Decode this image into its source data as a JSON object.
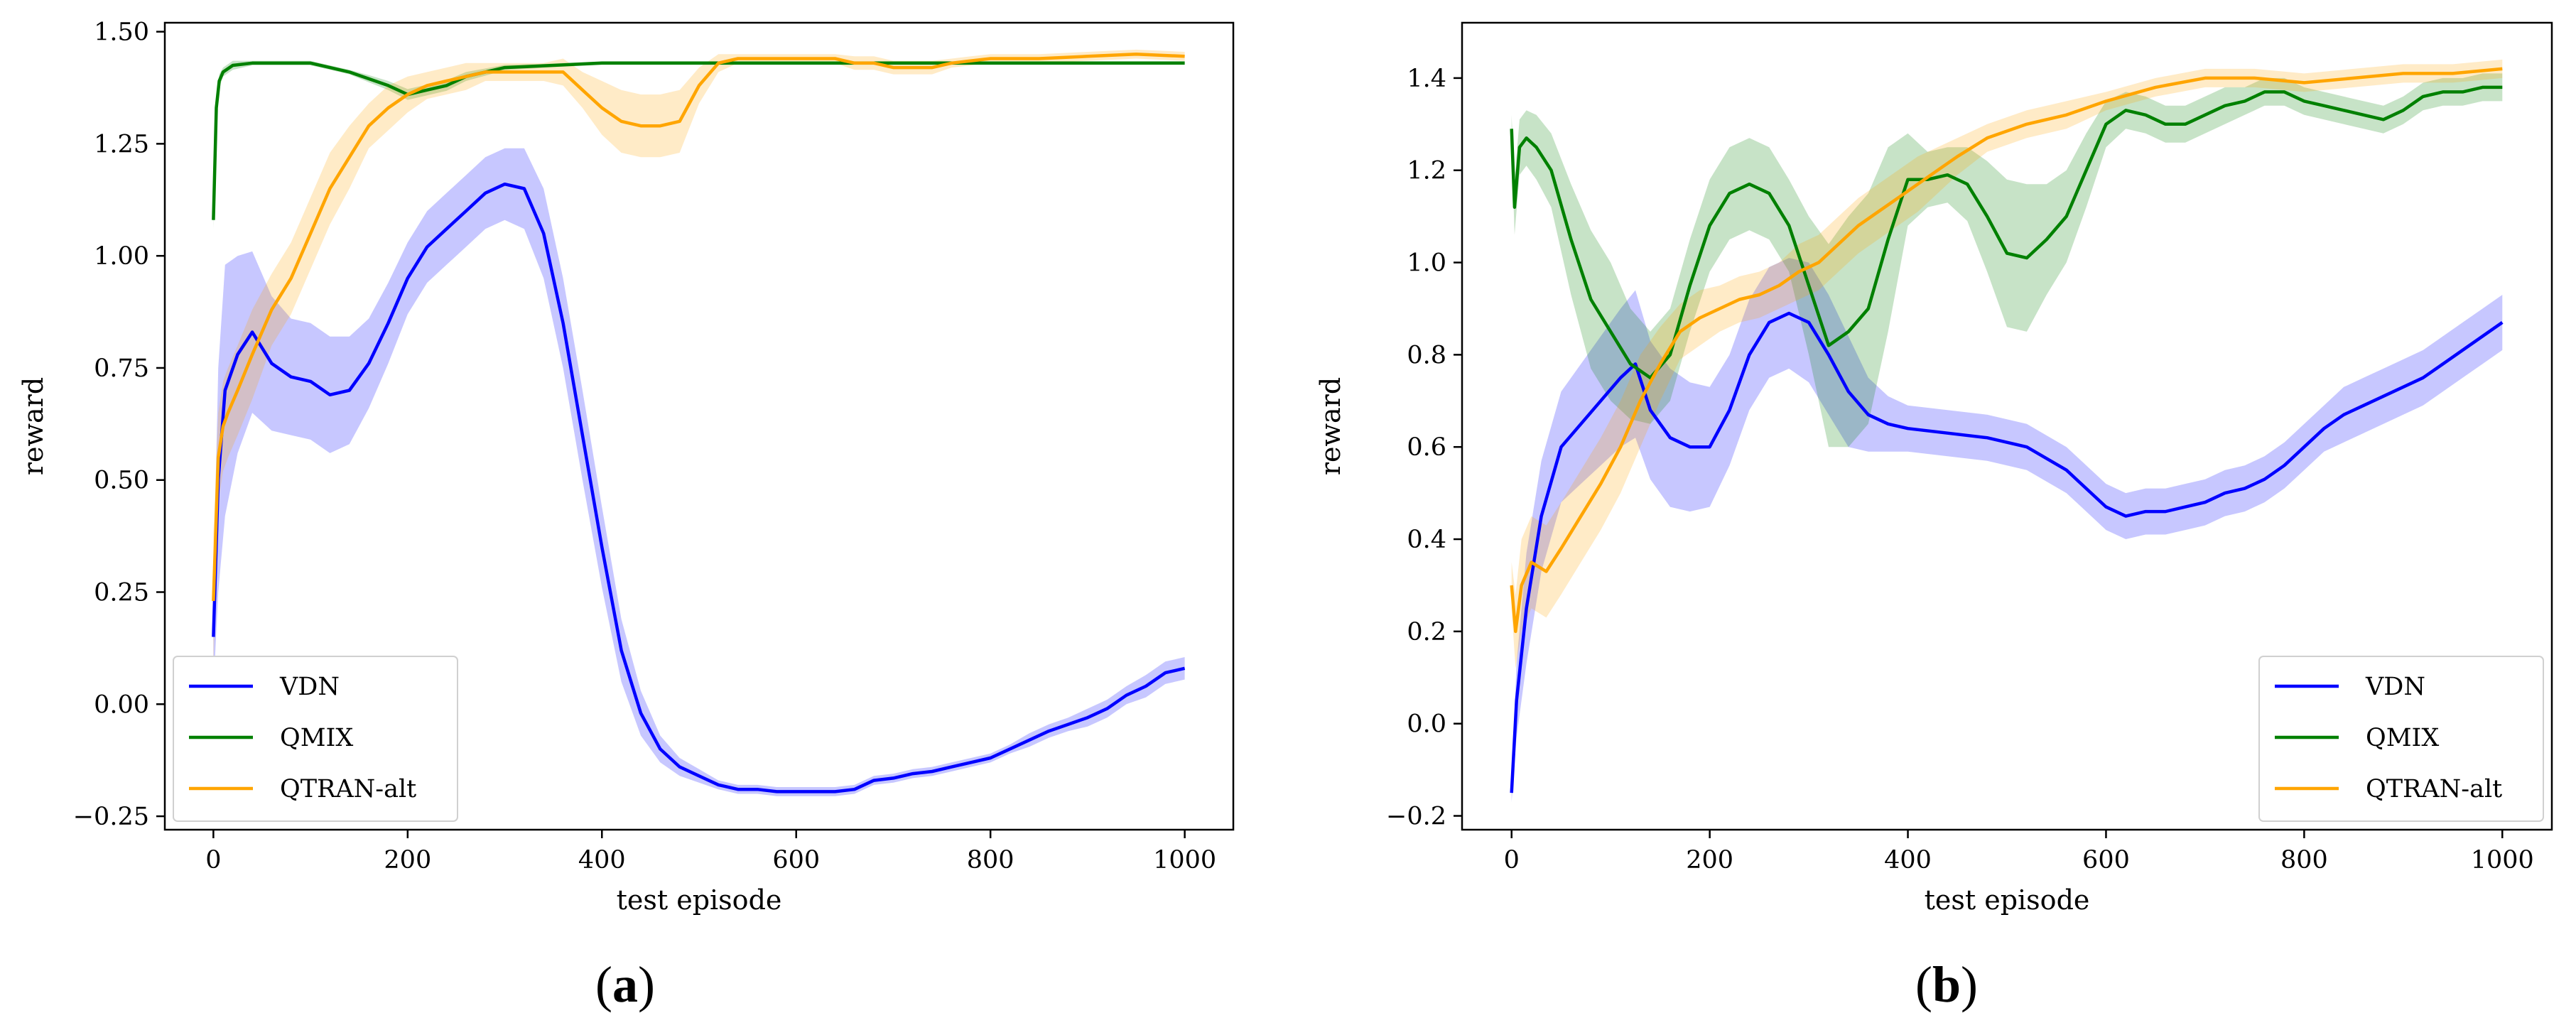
{
  "colors": {
    "VDN": "#0000ff",
    "QMIX": "#008000",
    "QTRAN-alt": "#ffa500"
  },
  "chart_data": [
    {
      "type": "line",
      "panel_label": "a",
      "xlabel": "test episode",
      "ylabel": "reward",
      "xlim": [
        -50,
        1050
      ],
      "ylim": [
        -0.28,
        1.52
      ],
      "xticks": [
        0,
        200,
        400,
        600,
        800,
        1000
      ],
      "xtick_labels": [
        "0",
        "200",
        "400",
        "600",
        "800",
        "1000"
      ],
      "yticks": [
        -0.25,
        0,
        0.25,
        0.5,
        0.75,
        1.0,
        1.25,
        1.5
      ],
      "ytick_labels": [
        "−0.25",
        "0.00",
        "0.25",
        "0.50",
        "0.75",
        "1.00",
        "1.25",
        "1.50"
      ],
      "legend_position": "lower-left",
      "series": [
        {
          "name": "VDN",
          "x": [
            0,
            5,
            12,
            25,
            40,
            60,
            80,
            100,
            120,
            140,
            160,
            180,
            200,
            220,
            240,
            260,
            280,
            300,
            320,
            340,
            360,
            380,
            400,
            420,
            440,
            460,
            480,
            500,
            520,
            540,
            560,
            580,
            600,
            620,
            640,
            660,
            680,
            700,
            720,
            740,
            760,
            780,
            800,
            820,
            840,
            860,
            880,
            900,
            920,
            940,
            960,
            980,
            1000
          ],
          "y": [
            0.15,
            0.5,
            0.7,
            0.78,
            0.83,
            0.76,
            0.73,
            0.72,
            0.69,
            0.7,
            0.76,
            0.85,
            0.95,
            1.02,
            1.06,
            1.1,
            1.14,
            1.16,
            1.15,
            1.05,
            0.85,
            0.6,
            0.35,
            0.12,
            -0.02,
            -0.1,
            -0.14,
            -0.16,
            -0.18,
            -0.19,
            -0.19,
            -0.195,
            -0.195,
            -0.195,
            -0.195,
            -0.19,
            -0.17,
            -0.165,
            -0.155,
            -0.15,
            -0.14,
            -0.13,
            -0.12,
            -0.1,
            -0.08,
            -0.06,
            -0.045,
            -0.03,
            -0.01,
            0.02,
            0.04,
            0.07,
            0.08
          ],
          "band": [
            0.12,
            0.25,
            0.28,
            0.22,
            0.18,
            0.15,
            0.13,
            0.13,
            0.13,
            0.12,
            0.1,
            0.09,
            0.08,
            0.08,
            0.08,
            0.08,
            0.08,
            0.08,
            0.09,
            0.1,
            0.1,
            0.1,
            0.09,
            0.07,
            0.05,
            0.03,
            0.02,
            0.015,
            0.01,
            0.01,
            0.01,
            0.01,
            0.01,
            0.01,
            0.01,
            0.01,
            0.01,
            0.01,
            0.01,
            0.01,
            0.01,
            0.01,
            0.01,
            0.01,
            0.015,
            0.015,
            0.015,
            0.02,
            0.02,
            0.02,
            0.025,
            0.025,
            0.025
          ]
        },
        {
          "name": "QMIX",
          "x": [
            0,
            3,
            6,
            10,
            20,
            40,
            60,
            80,
            100,
            120,
            140,
            160,
            180,
            200,
            220,
            240,
            260,
            280,
            300,
            350,
            400,
            450,
            500,
            550,
            600,
            650,
            700,
            750,
            800,
            850,
            900,
            950,
            1000
          ],
          "y": [
            1.08,
            1.33,
            1.39,
            1.41,
            1.425,
            1.43,
            1.43,
            1.43,
            1.43,
            1.42,
            1.41,
            1.395,
            1.38,
            1.36,
            1.37,
            1.38,
            1.4,
            1.41,
            1.42,
            1.425,
            1.43,
            1.43,
            1.43,
            1.43,
            1.43,
            1.43,
            1.43,
            1.43,
            1.43,
            1.43,
            1.43,
            1.43,
            1.43
          ],
          "band": [
            0.02,
            0.02,
            0.015,
            0.01,
            0.01,
            0.005,
            0.005,
            0.005,
            0.005,
            0.005,
            0.005,
            0.008,
            0.01,
            0.012,
            0.012,
            0.012,
            0.01,
            0.008,
            0.006,
            0.004,
            0.004,
            0.004,
            0.004,
            0.004,
            0.004,
            0.004,
            0.004,
            0.004,
            0.004,
            0.004,
            0.004,
            0.004,
            0.004
          ]
        },
        {
          "name": "QTRAN-alt",
          "x": [
            0,
            5,
            10,
            15,
            25,
            40,
            60,
            80,
            100,
            120,
            140,
            160,
            180,
            200,
            220,
            240,
            260,
            280,
            300,
            320,
            340,
            360,
            380,
            400,
            420,
            440,
            460,
            480,
            500,
            520,
            540,
            560,
            580,
            600,
            620,
            640,
            660,
            680,
            700,
            720,
            740,
            760,
            780,
            800,
            850,
            900,
            950,
            1000
          ],
          "y": [
            0.23,
            0.55,
            0.62,
            0.65,
            0.7,
            0.78,
            0.88,
            0.95,
            1.05,
            1.15,
            1.22,
            1.29,
            1.33,
            1.36,
            1.38,
            1.39,
            1.4,
            1.41,
            1.41,
            1.41,
            1.41,
            1.41,
            1.37,
            1.33,
            1.3,
            1.29,
            1.29,
            1.3,
            1.38,
            1.43,
            1.44,
            1.44,
            1.44,
            1.44,
            1.44,
            1.44,
            1.43,
            1.43,
            1.42,
            1.42,
            1.42,
            1.43,
            1.435,
            1.44,
            1.44,
            1.445,
            1.45,
            1.445
          ],
          "band": [
            0.15,
            0.1,
            0.1,
            0.1,
            0.1,
            0.1,
            0.08,
            0.08,
            0.08,
            0.08,
            0.07,
            0.05,
            0.05,
            0.04,
            0.03,
            0.03,
            0.03,
            0.02,
            0.02,
            0.02,
            0.02,
            0.03,
            0.04,
            0.06,
            0.07,
            0.07,
            0.07,
            0.07,
            0.04,
            0.02,
            0.01,
            0.01,
            0.01,
            0.01,
            0.01,
            0.01,
            0.015,
            0.015,
            0.015,
            0.015,
            0.015,
            0.01,
            0.01,
            0.01,
            0.01,
            0.01,
            0.01,
            0.01
          ]
        }
      ]
    },
    {
      "type": "line",
      "panel_label": "b",
      "xlabel": "test episode",
      "ylabel": "reward",
      "xlim": [
        -50,
        1050
      ],
      "ylim": [
        -0.23,
        1.52
      ],
      "xticks": [
        0,
        200,
        400,
        600,
        800,
        1000
      ],
      "xtick_labels": [
        "0",
        "200",
        "400",
        "600",
        "800",
        "1000"
      ],
      "yticks": [
        -0.2,
        0,
        0.2,
        0.4,
        0.6,
        0.8,
        1.0,
        1.2,
        1.4
      ],
      "ytick_labels": [
        "−0.2",
        "0.0",
        "0.2",
        "0.4",
        "0.6",
        "0.8",
        "1.0",
        "1.2",
        "1.4"
      ],
      "legend_position": "lower-right",
      "series": [
        {
          "name": "VDN",
          "x": [
            0,
            5,
            15,
            30,
            50,
            70,
            90,
            110,
            125,
            140,
            160,
            180,
            200,
            220,
            240,
            260,
            280,
            300,
            320,
            340,
            360,
            380,
            400,
            440,
            480,
            520,
            560,
            600,
            620,
            640,
            660,
            680,
            700,
            720,
            740,
            760,
            780,
            800,
            820,
            840,
            860,
            880,
            900,
            920,
            940,
            960,
            980,
            1000
          ],
          "y": [
            -0.15,
            0.05,
            0.25,
            0.45,
            0.6,
            0.65,
            0.7,
            0.75,
            0.78,
            0.68,
            0.62,
            0.6,
            0.6,
            0.68,
            0.8,
            0.87,
            0.89,
            0.87,
            0.8,
            0.72,
            0.67,
            0.65,
            0.64,
            0.63,
            0.62,
            0.6,
            0.55,
            0.47,
            0.45,
            0.46,
            0.46,
            0.47,
            0.48,
            0.5,
            0.51,
            0.53,
            0.56,
            0.6,
            0.64,
            0.67,
            0.69,
            0.71,
            0.73,
            0.75,
            0.78,
            0.81,
            0.84,
            0.87
          ],
          "band": [
            0.02,
            0.08,
            0.12,
            0.12,
            0.12,
            0.13,
            0.14,
            0.15,
            0.16,
            0.15,
            0.15,
            0.14,
            0.13,
            0.12,
            0.12,
            0.12,
            0.12,
            0.13,
            0.13,
            0.12,
            0.08,
            0.06,
            0.05,
            0.05,
            0.05,
            0.05,
            0.05,
            0.05,
            0.05,
            0.05,
            0.05,
            0.05,
            0.05,
            0.05,
            0.05,
            0.05,
            0.05,
            0.05,
            0.05,
            0.06,
            0.06,
            0.06,
            0.06,
            0.06,
            0.06,
            0.06,
            0.06,
            0.06
          ]
        },
        {
          "name": "QMIX",
          "x": [
            0,
            3,
            8,
            15,
            25,
            40,
            60,
            80,
            100,
            120,
            140,
            160,
            180,
            200,
            220,
            240,
            260,
            280,
            300,
            320,
            340,
            360,
            380,
            400,
            420,
            440,
            460,
            480,
            500,
            520,
            540,
            560,
            580,
            600,
            620,
            640,
            660,
            680,
            700,
            720,
            740,
            760,
            780,
            800,
            820,
            840,
            860,
            880,
            900,
            920,
            940,
            960,
            980,
            1000
          ],
          "y": [
            1.29,
            1.12,
            1.25,
            1.27,
            1.25,
            1.2,
            1.05,
            0.92,
            0.85,
            0.78,
            0.75,
            0.8,
            0.95,
            1.08,
            1.15,
            1.17,
            1.15,
            1.08,
            0.95,
            0.82,
            0.85,
            0.9,
            1.05,
            1.18,
            1.18,
            1.19,
            1.17,
            1.1,
            1.02,
            1.01,
            1.05,
            1.1,
            1.2,
            1.3,
            1.33,
            1.32,
            1.3,
            1.3,
            1.32,
            1.34,
            1.35,
            1.37,
            1.37,
            1.35,
            1.34,
            1.33,
            1.32,
            1.31,
            1.33,
            1.36,
            1.37,
            1.37,
            1.38,
            1.38
          ],
          "band": [
            0.03,
            0.06,
            0.06,
            0.06,
            0.07,
            0.08,
            0.12,
            0.15,
            0.15,
            0.12,
            0.1,
            0.1,
            0.1,
            0.1,
            0.1,
            0.1,
            0.1,
            0.1,
            0.15,
            0.22,
            0.25,
            0.25,
            0.2,
            0.1,
            0.06,
            0.06,
            0.08,
            0.12,
            0.16,
            0.16,
            0.12,
            0.1,
            0.08,
            0.05,
            0.04,
            0.04,
            0.04,
            0.04,
            0.04,
            0.04,
            0.03,
            0.03,
            0.03,
            0.03,
            0.03,
            0.03,
            0.03,
            0.03,
            0.03,
            0.03,
            0.03,
            0.03,
            0.03,
            0.03
          ]
        },
        {
          "name": "QTRAN-alt",
          "x": [
            0,
            4,
            10,
            20,
            35,
            50,
            70,
            90,
            110,
            130,
            150,
            170,
            190,
            210,
            230,
            250,
            270,
            290,
            310,
            330,
            350,
            370,
            390,
            410,
            430,
            450,
            480,
            520,
            560,
            600,
            650,
            700,
            750,
            800,
            850,
            900,
            950,
            1000
          ],
          "y": [
            0.3,
            0.2,
            0.3,
            0.35,
            0.33,
            0.38,
            0.45,
            0.52,
            0.6,
            0.7,
            0.78,
            0.85,
            0.88,
            0.9,
            0.92,
            0.93,
            0.95,
            0.98,
            1.0,
            1.04,
            1.08,
            1.11,
            1.14,
            1.17,
            1.2,
            1.23,
            1.27,
            1.3,
            1.32,
            1.35,
            1.38,
            1.4,
            1.4,
            1.39,
            1.4,
            1.41,
            1.41,
            1.42
          ],
          "band": [
            0.05,
            0.08,
            0.1,
            0.1,
            0.1,
            0.1,
            0.1,
            0.1,
            0.1,
            0.1,
            0.08,
            0.06,
            0.06,
            0.05,
            0.05,
            0.05,
            0.05,
            0.06,
            0.06,
            0.06,
            0.06,
            0.06,
            0.06,
            0.06,
            0.05,
            0.04,
            0.03,
            0.03,
            0.03,
            0.02,
            0.02,
            0.02,
            0.02,
            0.02,
            0.02,
            0.02,
            0.02,
            0.02
          ]
        }
      ]
    }
  ]
}
